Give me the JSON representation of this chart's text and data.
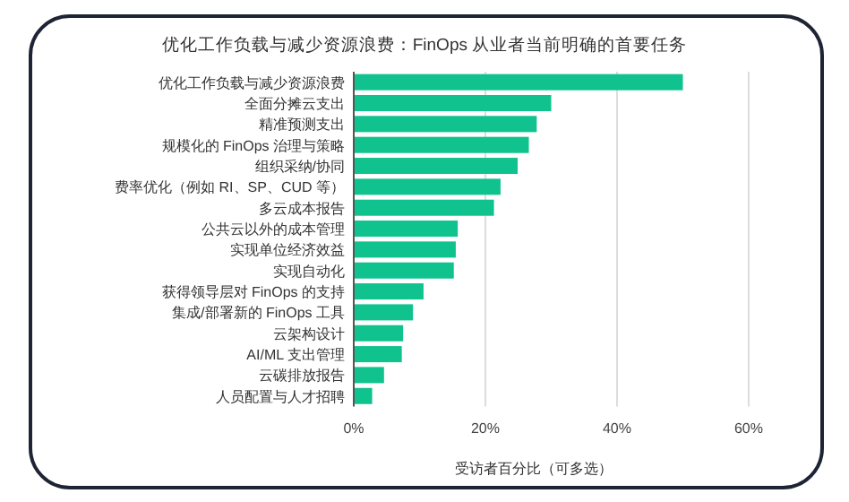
{
  "chart_data": {
    "type": "bar",
    "orientation": "horizontal",
    "title": "优化工作负载与减少资源浪费：FinOps 从业者当前明确的首要任务",
    "xlabel": "受访者百分比（可多选）",
    "categories": [
      "优化工作负载与减少资源浪费",
      "全面分摊云支出",
      "精准预测支出",
      "规模化的 FinOps 治理与策略",
      "组织采纳/协同",
      "费率优化（例如 RI、SP、CUD 等）",
      "多云成本报告",
      "公共云以外的成本管理",
      "实现单位经济效益",
      "实现自动化",
      "获得领导层对 FinOps 的支持",
      "集成/部署新的 FinOps 工具",
      "云架构设计",
      "AI/ML 支出管理",
      "云碳排放报告",
      "人员配置与人才招聘"
    ],
    "values": [
      50,
      30,
      27.8,
      26.6,
      24.9,
      22.3,
      21.3,
      15.8,
      15.5,
      15.2,
      10.6,
      9.0,
      7.5,
      7.3,
      4.6,
      2.8
    ],
    "color": "#10c28e",
    "xlim": [
      0,
      60
    ],
    "xticks": [
      {
        "value": 0,
        "label": "0%"
      },
      {
        "value": 20,
        "label": "20%"
      },
      {
        "value": 40,
        "label": "40%"
      },
      {
        "value": 60,
        "label": "60%"
      }
    ],
    "grid": "x"
  }
}
